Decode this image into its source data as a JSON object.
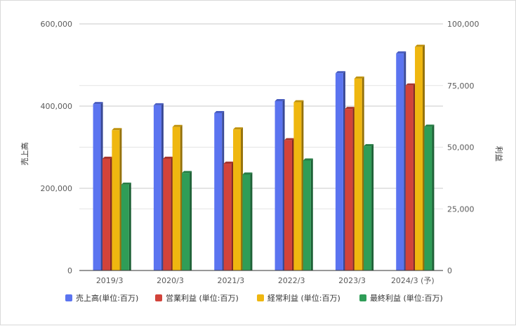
{
  "chart_data": {
    "type": "bar",
    "title": "",
    "categories": [
      "2019/3",
      "2020/3",
      "2021/3",
      "2022/3",
      "2023/3",
      "2024/3 (予)"
    ],
    "y_left_label": "売上高",
    "y_right_label": "利益",
    "y_left_ticks": [
      "0",
      "200,000",
      "400,000",
      "600,000"
    ],
    "y_right_ticks": [
      "0",
      "25,000",
      "50,000",
      "75,000",
      "100,000"
    ],
    "ylim_left": [
      0,
      600000
    ],
    "ylim_right": [
      0,
      100000
    ],
    "grid": true,
    "legend_position": "bottom",
    "series": [
      {
        "name": "売上高(単位:百万)",
        "axis": "left",
        "color": "#5b74f0",
        "values": [
          405000,
          402000,
          383000,
          412000,
          480000,
          528000
        ]
      },
      {
        "name": "営業利益 (単位:百万)",
        "axis": "right",
        "color": "#d2433a",
        "values": [
          45300,
          45300,
          43300,
          52800,
          65500,
          75000
        ]
      },
      {
        "name": "経常利益 (単位:百万)",
        "axis": "right",
        "color": "#efb710",
        "values": [
          56900,
          58200,
          57200,
          68200,
          77800,
          90700
        ]
      },
      {
        "name": "最終利益 (単位:百万)",
        "axis": "right",
        "color": "#2f9d57",
        "values": [
          34800,
          39500,
          38900,
          44600,
          50400,
          58300
        ]
      }
    ]
  }
}
